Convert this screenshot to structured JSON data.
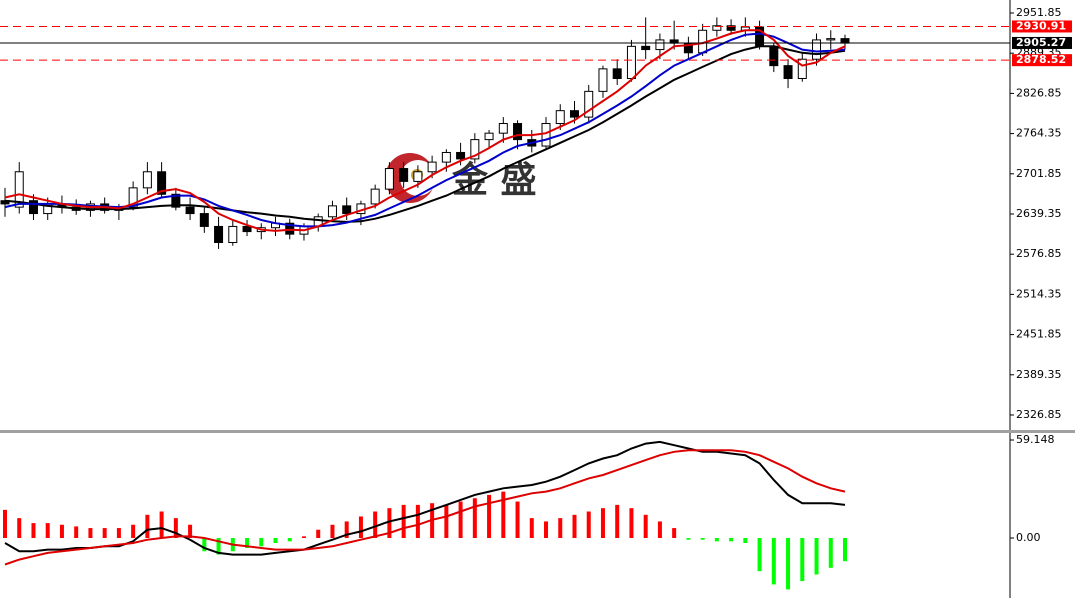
{
  "chart_data": [
    {
      "type": "candlestick",
      "watermark": "金 盛",
      "ylim": [
        2303.5,
        2972.06
      ],
      "yticks": [
        2951.85,
        2889.35,
        2826.85,
        2764.35,
        2701.85,
        2639.35,
        2576.85,
        2514.35,
        2451.85,
        2389.35,
        2326.85
      ],
      "up_color": "#ffffff",
      "down_color": "#000000",
      "levels": [
        {
          "value": 2930.91,
          "color": "#ff0000",
          "style": "dashed"
        },
        {
          "value": 2905.27,
          "color": "#000000",
          "style": "solid"
        },
        {
          "value": 2878.52,
          "color": "#ff0000",
          "style": "dashed"
        }
      ],
      "open": [
        2660,
        2650,
        2660,
        2640,
        2655,
        2650,
        2645,
        2655,
        2645,
        2650,
        2680,
        2705,
        2670,
        2650,
        2640,
        2620,
        2595,
        2620,
        2612,
        2618,
        2625,
        2608,
        2620,
        2635,
        2652,
        2640,
        2655,
        2678,
        2710,
        2690,
        2705,
        2720,
        2735,
        2725,
        2755,
        2765,
        2780,
        2755,
        2745,
        2780,
        2800,
        2790,
        2830,
        2865,
        2850,
        2900,
        2895,
        2910,
        2905,
        2890,
        2925,
        2932,
        2925,
        2930,
        2900,
        2870,
        2850,
        2880,
        2910,
        2912
      ],
      "high": [
        2680,
        2720,
        2670,
        2665,
        2668,
        2662,
        2660,
        2665,
        2655,
        2690,
        2720,
        2720,
        2680,
        2665,
        2650,
        2635,
        2630,
        2630,
        2625,
        2635,
        2632,
        2625,
        2640,
        2660,
        2665,
        2660,
        2685,
        2720,
        2720,
        2715,
        2730,
        2740,
        2750,
        2765,
        2770,
        2790,
        2785,
        2770,
        2790,
        2810,
        2815,
        2840,
        2870,
        2880,
        2910,
        2945,
        2920,
        2940,
        2915,
        2935,
        2945,
        2942,
        2945,
        2940,
        2905,
        2880,
        2890,
        2920,
        2925,
        2918
      ],
      "low": [
        2635,
        2640,
        2630,
        2630,
        2640,
        2638,
        2635,
        2640,
        2630,
        2645,
        2670,
        2665,
        2645,
        2630,
        2610,
        2585,
        2590,
        2605,
        2600,
        2605,
        2600,
        2598,
        2612,
        2628,
        2630,
        2622,
        2648,
        2670,
        2680,
        2680,
        2695,
        2705,
        2715,
        2718,
        2740,
        2750,
        2740,
        2735,
        2740,
        2770,
        2780,
        2780,
        2820,
        2840,
        2845,
        2880,
        2880,
        2895,
        2880,
        2885,
        2915,
        2918,
        2915,
        2895,
        2860,
        2835,
        2845,
        2870,
        2895,
        2895
      ],
      "close": [
        2655,
        2705,
        2640,
        2655,
        2650,
        2645,
        2655,
        2645,
        2650,
        2680,
        2705,
        2670,
        2650,
        2640,
        2620,
        2595,
        2620,
        2612,
        2618,
        2625,
        2608,
        2620,
        2635,
        2652,
        2640,
        2655,
        2678,
        2710,
        2690,
        2705,
        2720,
        2735,
        2725,
        2755,
        2765,
        2780,
        2755,
        2745,
        2780,
        2800,
        2790,
        2830,
        2865,
        2850,
        2900,
        2895,
        2910,
        2905,
        2890,
        2925,
        2932,
        2925,
        2930,
        2900,
        2870,
        2850,
        2880,
        2910,
        2912,
        2905
      ],
      "series": [
        {
          "color": "#000000",
          "values": [
            2660,
            2658,
            2655,
            2652,
            2650,
            2648,
            2647,
            2647,
            2647,
            2648,
            2650,
            2652,
            2653,
            2653,
            2651,
            2648,
            2645,
            2642,
            2640,
            2637,
            2635,
            2632,
            2630,
            2628,
            2627,
            2628,
            2632,
            2638,
            2645,
            2652,
            2660,
            2668,
            2678,
            2688,
            2698,
            2710,
            2720,
            2730,
            2740,
            2750,
            2760,
            2770,
            2782,
            2795,
            2808,
            2822,
            2835,
            2848,
            2858,
            2868,
            2878,
            2888,
            2895,
            2900,
            2900,
            2895,
            2890,
            2888,
            2890,
            2893
          ]
        },
        {
          "color": "#0000cc",
          "values": [
            2650,
            2655,
            2655,
            2655,
            2655,
            2654,
            2652,
            2651,
            2650,
            2652,
            2658,
            2665,
            2668,
            2668,
            2662,
            2652,
            2645,
            2638,
            2630,
            2625,
            2622,
            2620,
            2620,
            2622,
            2626,
            2632,
            2638,
            2648,
            2658,
            2668,
            2680,
            2692,
            2702,
            2712,
            2722,
            2735,
            2745,
            2750,
            2755,
            2762,
            2772,
            2782,
            2795,
            2808,
            2822,
            2838,
            2855,
            2870,
            2880,
            2890,
            2900,
            2910,
            2918,
            2920,
            2915,
            2905,
            2895,
            2892,
            2893,
            2895
          ]
        },
        {
          "color": "#dd0000",
          "values": [
            2665,
            2670,
            2665,
            2660,
            2655,
            2652,
            2650,
            2650,
            2648,
            2655,
            2665,
            2675,
            2678,
            2672,
            2658,
            2640,
            2630,
            2622,
            2615,
            2613,
            2615,
            2614,
            2620,
            2630,
            2638,
            2645,
            2652,
            2665,
            2675,
            2685,
            2700,
            2712,
            2722,
            2730,
            2742,
            2755,
            2762,
            2762,
            2765,
            2775,
            2785,
            2800,
            2815,
            2830,
            2848,
            2870,
            2885,
            2900,
            2902,
            2905,
            2912,
            2920,
            2925,
            2925,
            2910,
            2885,
            2870,
            2875,
            2890,
            2900
          ]
        }
      ]
    },
    {
      "type": "macd",
      "ylim": [
        -36.2,
        63.37
      ],
      "yticks": [
        59.148,
        {
          "value": 0,
          "label": "0.00"
        }
      ],
      "up_color": "#ff0000",
      "down_color": "#00ff00",
      "histogram": [
        17,
        12,
        9,
        9,
        8,
        7,
        6,
        6,
        6,
        8,
        14,
        16,
        12,
        8,
        -8,
        -10,
        -8,
        -6,
        -5,
        -3,
        -2,
        1,
        5,
        8,
        10,
        13,
        16,
        18,
        20,
        20,
        21,
        20,
        22,
        24,
        26,
        28,
        22,
        12,
        10,
        12,
        14,
        16,
        18,
        20,
        18,
        14,
        10,
        6,
        -1,
        -1,
        -2,
        -2,
        -3,
        -20,
        -28,
        -31,
        -26,
        -22,
        -18,
        -14
      ],
      "series": [
        {
          "color": "#000000",
          "values": [
            -3,
            -8,
            -8,
            -7,
            -7,
            -6,
            -6,
            -5,
            -5,
            -2,
            5,
            6,
            3,
            -1,
            -6,
            -9,
            -10,
            -10,
            -10,
            -9,
            -8,
            -7,
            -4,
            -1,
            2,
            4,
            7,
            10,
            12,
            14,
            17,
            20,
            23,
            26,
            28,
            30,
            31,
            32,
            34,
            37,
            41,
            45,
            48,
            50,
            54,
            57,
            58,
            56,
            54,
            52,
            52,
            51,
            50,
            45,
            35,
            26,
            21,
            21,
            21,
            20
          ]
        },
        {
          "color": "#dd0000",
          "values": [
            -16,
            -13,
            -11,
            -9,
            -8,
            -7,
            -6,
            -5,
            -4,
            -3,
            -1,
            0,
            1,
            1,
            0,
            -2,
            -4,
            -5,
            -6,
            -7,
            -7,
            -7,
            -6,
            -5,
            -3,
            -1,
            1,
            3,
            6,
            8,
            11,
            13,
            16,
            19,
            21,
            23,
            25,
            27,
            28,
            30,
            33,
            36,
            38,
            41,
            44,
            47,
            50,
            52,
            53,
            53,
            53,
            53,
            52,
            50,
            46,
            42,
            37,
            33,
            30,
            28
          ]
        }
      ]
    }
  ]
}
